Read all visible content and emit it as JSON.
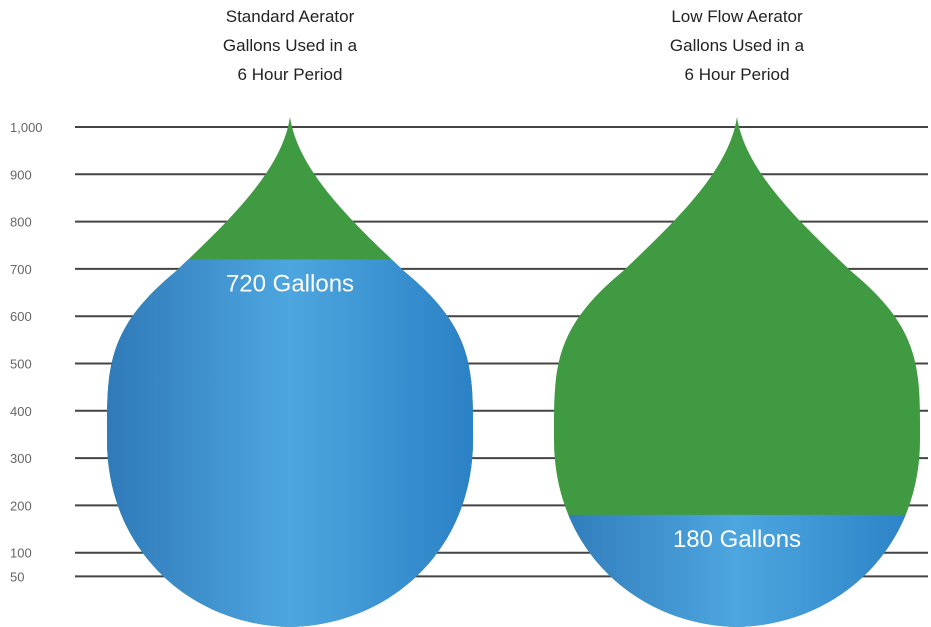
{
  "chart_data": {
    "type": "drop",
    "categories": [
      "Standard Aerator\nGallons Used in a\n6 Hour Period",
      "Low Flow Aerator\nGallons Used in a\n6 Hour Period"
    ],
    "values": [
      720,
      180
    ],
    "value_labels": [
      "720 Gallons",
      "180 Gallons"
    ],
    "color": "#3a92d0",
    "background_color": "#3f9a42",
    "ylim": [
      0,
      1000
    ],
    "yticks": [
      {
        "value": 1000,
        "label": "1,000"
      },
      900,
      800,
      700,
      600,
      500,
      400,
      300,
      200,
      100,
      50
    ],
    "grid": true
  }
}
